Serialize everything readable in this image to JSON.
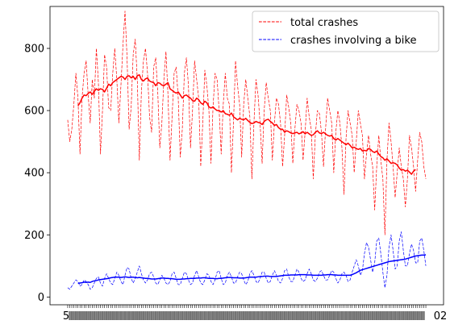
{
  "chart_data": {
    "type": "line",
    "title": "",
    "xlabel": "",
    "ylabel": "",
    "ylim": [
      -25,
      935
    ],
    "yticks": [
      0,
      200,
      400,
      600,
      800
    ],
    "legend_position": "top-right",
    "grid": false,
    "x_tick_labels_overlapping": true,
    "x_tick_labels_legible": [
      "5",
      "02"
    ],
    "series": [
      {
        "name": "total crashes",
        "color": "#ff0000",
        "style": "dashed",
        "values": [
          570,
          500,
          540,
          620,
          720,
          640,
          460,
          640,
          720,
          760,
          650,
          560,
          700,
          640,
          800,
          690,
          460,
          600,
          780,
          740,
          610,
          600,
          720,
          800,
          700,
          560,
          680,
          810,
          920,
          770,
          540,
          610,
          780,
          830,
          700,
          440,
          660,
          760,
          800,
          720,
          580,
          530,
          740,
          770,
          660,
          480,
          560,
          700,
          790,
          650,
          440,
          580,
          720,
          740,
          640,
          450,
          540,
          720,
          770,
          680,
          480,
          600,
          760,
          700,
          640,
          420,
          560,
          730,
          680,
          600,
          430,
          610,
          720,
          700,
          600,
          460,
          620,
          720,
          640,
          620,
          400,
          560,
          760,
          680,
          620,
          450,
          620,
          700,
          640,
          580,
          380,
          560,
          700,
          650,
          560,
          430,
          600,
          690,
          640,
          600,
          440,
          560,
          640,
          620,
          560,
          420,
          520,
          650,
          610,
          560,
          430,
          540,
          620,
          600,
          560,
          440,
          530,
          640,
          580,
          540,
          380,
          520,
          600,
          590,
          530,
          420,
          540,
          640,
          600,
          560,
          400,
          530,
          600,
          560,
          480,
          330,
          510,
          600,
          560,
          520,
          400,
          500,
          600,
          560,
          520,
          380,
          460,
          520,
          460,
          420,
          280,
          420,
          520,
          440,
          380,
          200,
          440,
          560,
          500,
          420,
          320,
          400,
          480,
          420,
          380,
          290,
          380,
          520,
          480,
          420,
          340,
          440,
          530,
          500,
          420,
          380
        ]
      },
      {
        "name": "crashes involving a bike",
        "color": "#0000ff",
        "style": "dashed",
        "values": [
          30,
          25,
          35,
          45,
          55,
          50,
          35,
          40,
          55,
          50,
          40,
          25,
          30,
          45,
          60,
          65,
          45,
          35,
          60,
          75,
          60,
          45,
          40,
          60,
          80,
          70,
          50,
          40,
          70,
          95,
          90,
          60,
          45,
          60,
          80,
          100,
          75,
          55,
          45,
          55,
          75,
          80,
          65,
          45,
          40,
          55,
          70,
          60,
          45,
          40,
          50,
          75,
          80,
          60,
          40,
          40,
          60,
          80,
          75,
          55,
          40,
          45,
          70,
          85,
          65,
          45,
          40,
          55,
          75,
          70,
          50,
          40,
          55,
          80,
          85,
          60,
          40,
          45,
          70,
          80,
          65,
          45,
          45,
          65,
          80,
          75,
          55,
          40,
          50,
          75,
          85,
          70,
          50,
          45,
          60,
          80,
          80,
          60,
          45,
          50,
          70,
          85,
          70,
          50,
          45,
          60,
          85,
          90,
          65,
          50,
          50,
          70,
          90,
          80,
          60,
          50,
          55,
          75,
          90,
          75,
          55,
          50,
          60,
          80,
          85,
          70,
          55,
          55,
          70,
          85,
          80,
          60,
          45,
          55,
          75,
          80,
          70,
          50,
          55,
          80,
          100,
          120,
          100,
          70,
          85,
          140,
          175,
          160,
          120,
          80,
          110,
          180,
          190,
          140,
          80,
          30,
          70,
          160,
          200,
          150,
          90,
          100,
          180,
          210,
          150,
          100,
          100,
          140,
          170,
          150,
          110,
          110,
          180,
          190,
          150,
          100
        ]
      },
      {
        "name": "",
        "color": "#ff0000",
        "style": "solid",
        "x_start_index": 5,
        "values": [
          615,
          625,
          640,
          650,
          648,
          655,
          660,
          652,
          662,
          670,
          665,
          670,
          668,
          660,
          672,
          685,
          680,
          690,
          695,
          700,
          705,
          710,
          708,
          700,
          710,
          712,
          705,
          710,
          700,
          712,
          715,
          700,
          695,
          702,
          705,
          695,
          692,
          690,
          680,
          690,
          688,
          682,
          680,
          685,
          690,
          670,
          665,
          660,
          656,
          660,
          650,
          640,
          648,
          650,
          644,
          640,
          632,
          630,
          640,
          635,
          625,
          620,
          630,
          625,
          612,
          608,
          612,
          605,
          600,
          600,
          595,
          600,
          590,
          588,
          585,
          592,
          580,
          575,
          570,
          575,
          572,
          570,
          575,
          568,
          562,
          558,
          560,
          565,
          562,
          560,
          555,
          565,
          570,
          572,
          565,
          560,
          552,
          555,
          545,
          540,
          540,
          530,
          535,
          532,
          528,
          526,
          528,
          530,
          525,
          528,
          532,
          525,
          530,
          525,
          520,
          522,
          530,
          535,
          528,
          526,
          530,
          525,
          520,
          518,
          520,
          510,
          505,
          510,
          505,
          500,
          495,
          490,
          495,
          488,
          480,
          482,
          478,
          475,
          478,
          470,
          472,
          470,
          478,
          475,
          468,
          465,
          470,
          460,
          452,
          448,
          440,
          445,
          438,
          430,
          432,
          430,
          425,
          415,
          408,
          410,
          405,
          408,
          402,
          395,
          405,
          410
        ]
      },
      {
        "name": "",
        "color": "#0000ff",
        "style": "solid",
        "x_start_index": 5,
        "values": [
          44,
          45,
          46,
          48,
          47,
          48,
          47,
          50,
          52,
          53,
          55,
          56,
          57,
          58,
          59,
          60,
          62,
          63,
          64,
          64,
          64,
          63,
          64,
          65,
          64,
          63,
          64,
          64,
          63,
          62,
          63,
          62,
          61,
          60,
          60,
          59,
          58,
          58,
          58,
          59,
          60,
          61,
          61,
          60,
          60,
          59,
          59,
          58,
          57,
          57,
          57,
          58,
          58,
          59,
          59,
          60,
          60,
          60,
          61,
          61,
          61,
          62,
          62,
          61,
          60,
          60,
          60,
          59,
          59,
          60,
          60,
          61,
          62,
          63,
          63,
          63,
          62,
          62,
          62,
          61,
          61,
          61,
          62,
          63,
          64,
          64,
          64,
          64,
          65,
          66,
          66,
          67,
          67,
          67,
          66,
          66,
          66,
          66,
          67,
          68,
          69,
          70,
          70,
          70,
          71,
          71,
          71,
          71,
          72,
          72,
          72,
          72,
          71,
          71,
          71,
          70,
          70,
          70,
          70,
          70,
          71,
          71,
          72,
          72,
          72,
          71,
          71,
          70,
          70,
          70,
          70,
          70,
          70,
          70,
          72,
          75,
          78,
          82,
          86,
          88,
          90,
          92,
          94,
          96,
          98,
          100,
          102,
          104,
          106,
          108,
          110,
          112,
          114,
          115,
          116,
          117,
          118,
          119,
          120,
          121,
          122,
          124,
          126,
          128,
          130,
          132,
          133,
          134,
          135,
          135,
          136
        ]
      }
    ]
  }
}
